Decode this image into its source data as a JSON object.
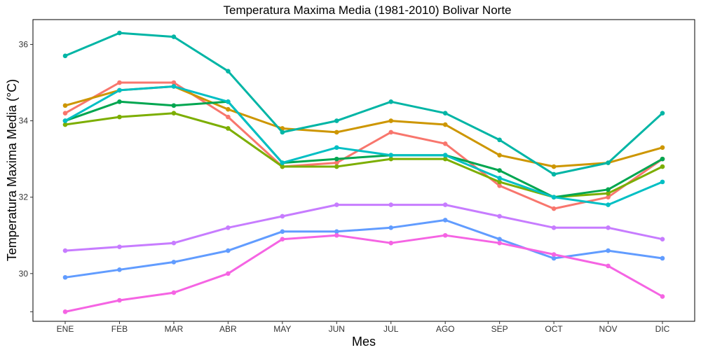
{
  "chart_data": {
    "type": "line",
    "title": "Temperatura Maxima Media (1981-2010)  Bolivar Norte",
    "xlabel": "Mes",
    "ylabel": "Temperatura Maxima Media  (°C)",
    "categories": [
      "ENE",
      "FEB",
      "MAR",
      "ABR",
      "MAY",
      "JUN",
      "JUL",
      "AGO",
      "SEP",
      "OCT",
      "NOV",
      "DIC"
    ],
    "ylim": [
      28.75,
      36.65
    ],
    "yticks": [
      30,
      32,
      34,
      36
    ],
    "grid": false,
    "legend": "none",
    "series": [
      {
        "color": "#F8766D",
        "values": [
          34.2,
          35.0,
          35.0,
          34.1,
          32.8,
          32.9,
          33.7,
          33.4,
          32.3,
          31.7,
          32.0,
          33.0
        ]
      },
      {
        "color": "#CD9600",
        "values": [
          34.4,
          34.8,
          34.9,
          34.3,
          33.8,
          33.7,
          34.0,
          33.9,
          33.1,
          32.8,
          32.9,
          33.3
        ]
      },
      {
        "color": "#7CAE00",
        "values": [
          33.9,
          34.1,
          34.2,
          33.8,
          32.8,
          32.8,
          33.0,
          33.0,
          32.4,
          32.0,
          32.1,
          32.8
        ]
      },
      {
        "color": "#00A650",
        "values": [
          34.0,
          34.5,
          34.4,
          34.5,
          32.9,
          33.0,
          33.1,
          33.1,
          32.7,
          32.0,
          32.2,
          33.0
        ]
      },
      {
        "color": "#00BFC4",
        "values": [
          34.0,
          34.8,
          34.9,
          34.5,
          32.9,
          33.3,
          33.1,
          33.1,
          32.5,
          32.0,
          31.8,
          32.4
        ]
      },
      {
        "color": "#00B5A5",
        "values": [
          35.7,
          36.3,
          36.2,
          35.3,
          33.7,
          34.0,
          34.5,
          34.2,
          33.5,
          32.6,
          32.9,
          34.2
        ]
      },
      {
        "color": "#C77CFF",
        "values": [
          30.6,
          30.7,
          30.8,
          31.2,
          31.5,
          31.8,
          31.8,
          31.8,
          31.5,
          31.2,
          31.2,
          30.9
        ]
      },
      {
        "color": "#619CFF",
        "values": [
          29.9,
          30.1,
          30.3,
          30.6,
          31.1,
          31.1,
          31.2,
          31.4,
          30.9,
          30.4,
          30.6,
          30.4
        ]
      },
      {
        "color": "#F564E3",
        "values": [
          29.0,
          29.3,
          29.5,
          30.0,
          30.9,
          31.0,
          30.8,
          31.0,
          30.8,
          30.5,
          30.2,
          29.4
        ]
      }
    ]
  }
}
